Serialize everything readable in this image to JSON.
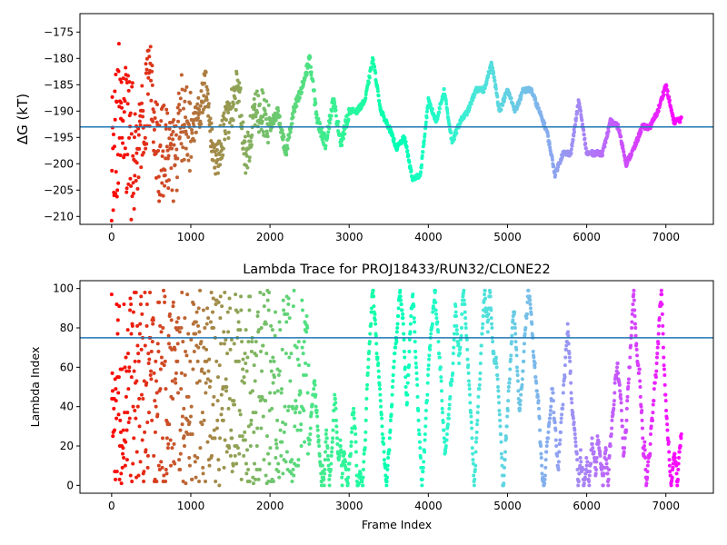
{
  "colors": {
    "hline": "#1f77b4",
    "colormap": "rainbow (red at start to violet at end)"
  },
  "chart_data": [
    {
      "type": "scatter",
      "title": "",
      "xlabel": "",
      "ylabel": "ΔG (kT)",
      "xlim": [
        -400,
        7600
      ],
      "ylim": [
        -211.5,
        -171.5
      ],
      "xticks": [
        0,
        1000,
        2000,
        3000,
        4000,
        5000,
        6000,
        7000
      ],
      "yticks": [
        -210,
        -205,
        -200,
        -195,
        -190,
        -185,
        -180,
        -175
      ],
      "hline": -193,
      "frames": 7200,
      "series": [
        {
          "color_by": "frame index",
          "x": [
            0,
            100,
            200,
            300,
            400,
            500,
            600,
            700,
            800,
            900,
            1000,
            1100,
            1200,
            1300,
            1400,
            1500,
            1600,
            1700,
            1800,
            1900,
            2000,
            2100,
            2200,
            2300,
            2400,
            2500,
            2600,
            2700,
            2800,
            2900,
            3000,
            3100,
            3200,
            3300,
            3400,
            3500,
            3600,
            3700,
            3800,
            3900,
            4000,
            4100,
            4200,
            4300,
            4400,
            4500,
            4600,
            4700,
            4800,
            4900,
            5000,
            5100,
            5200,
            5300,
            5400,
            5500,
            5600,
            5700,
            5800,
            5900,
            6000,
            6100,
            6200,
            6300,
            6400,
            6500,
            6600,
            6700,
            6800,
            6900,
            7000,
            7100,
            7200
          ],
          "y": [
            -200,
            -190,
            -195,
            -200,
            -190,
            -185,
            -200,
            -195,
            -200,
            -190,
            -195,
            -190,
            -185,
            -200,
            -195,
            -190,
            -185,
            -200,
            -190,
            -190,
            -193,
            -190,
            -198,
            -190,
            -186,
            -180,
            -192,
            -196,
            -188,
            -196,
            -190,
            -190,
            -188,
            -180,
            -190,
            -193,
            -197,
            -195,
            -203,
            -202,
            -188,
            -192,
            -186,
            -196,
            -192,
            -190,
            -186,
            -186,
            -181,
            -190,
            -186,
            -190,
            -186,
            -186,
            -190,
            -194,
            -202,
            -198,
            -198,
            -188,
            -198,
            -198,
            -198,
            -192,
            -193,
            -200,
            -197,
            -193,
            -193,
            -190,
            -185,
            -192,
            -191.5
          ]
        }
      ]
    },
    {
      "type": "scatter",
      "title": "Lambda Trace for PROJ18433/RUN32/CLONE22",
      "xlabel": "Frame Index",
      "ylabel": "Lambda Index",
      "xlim": [
        -400,
        7600
      ],
      "ylim": [
        -4,
        104
      ],
      "xticks": [
        0,
        1000,
        2000,
        3000,
        4000,
        5000,
        6000,
        7000
      ],
      "yticks": [
        0,
        20,
        40,
        60,
        80,
        100
      ],
      "hline": 75,
      "frames": 7200,
      "series": [
        {
          "color_by": "frame index",
          "range": [
            0,
            99
          ]
        }
      ]
    }
  ]
}
